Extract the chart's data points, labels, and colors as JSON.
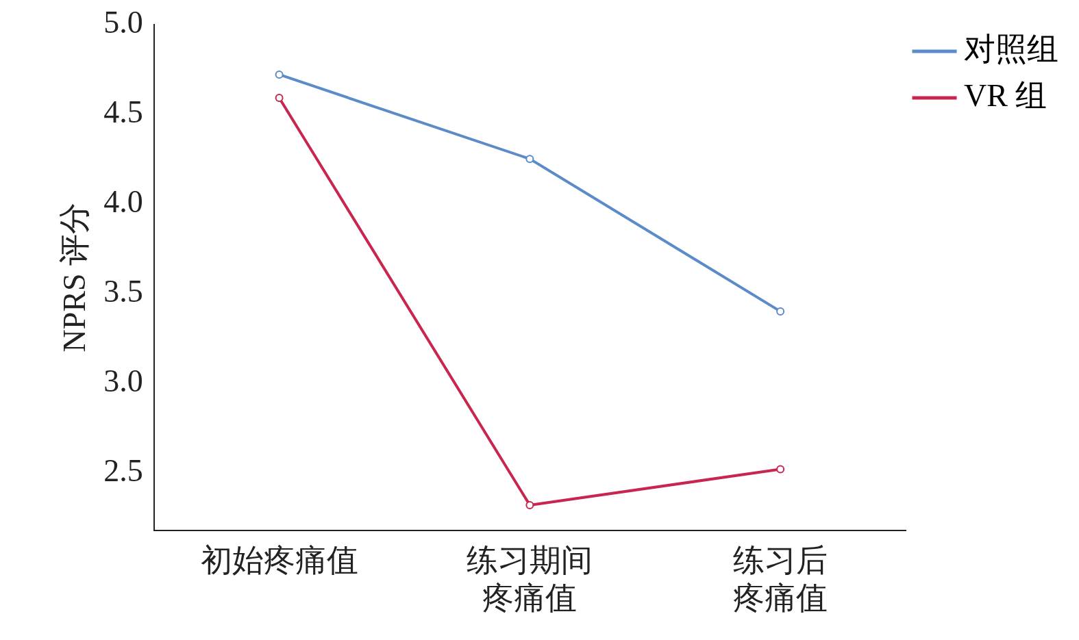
{
  "chart_data": {
    "type": "line",
    "ylabel": "NPRS 评分",
    "categories": [
      "初始疼痛值",
      "练习期间疼痛值",
      "练习后疼痛值"
    ],
    "series": [
      {
        "name": "对照组",
        "color": "#5b8bc9",
        "values": [
          4.72,
          4.25,
          3.4
        ]
      },
      {
        "name": "VR 组",
        "color": "#c8264f",
        "values": [
          4.59,
          2.32,
          2.52
        ]
      }
    ],
    "ylim": [
      2.18,
      5.0
    ],
    "yticks": [
      2.5,
      {
        "value": 3,
        "label": "3.0"
      },
      3.5,
      {
        "value": 4,
        "label": "4.0"
      },
      4.5,
      {
        "value": 5,
        "label": "5.0"
      }
    ],
    "grid": false,
    "legend": "top right",
    "marker": "circle",
    "line_style": "solid"
  }
}
